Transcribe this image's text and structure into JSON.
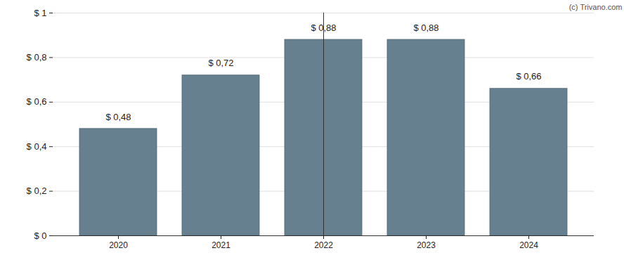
{
  "chart_data": {
    "type": "bar",
    "caption": "(c) Trivano.com",
    "categories": [
      "2020",
      "2021",
      "2022",
      "2023",
      "2024"
    ],
    "values": [
      0.48,
      0.72,
      0.88,
      0.88,
      0.66
    ],
    "value_labels": [
      "$ 0,48",
      "$ 0,72",
      "$ 0,88",
      "$ 0,88",
      "$ 0,66"
    ],
    "data_labels": true,
    "color": "#66808f",
    "ylim": [
      0,
      1
    ],
    "yticks": [
      {
        "value": 0,
        "label": "$ 0"
      },
      {
        "value": 0.2,
        "label": "$ 0,2"
      },
      {
        "value": 0.4,
        "label": "$ 0,4"
      },
      {
        "value": 0.6,
        "label": "$ 0,6"
      },
      {
        "value": 0.8,
        "label": "$ 0,8"
      },
      {
        "value": 1,
        "label": "$ 1"
      }
    ],
    "grid": true
  }
}
